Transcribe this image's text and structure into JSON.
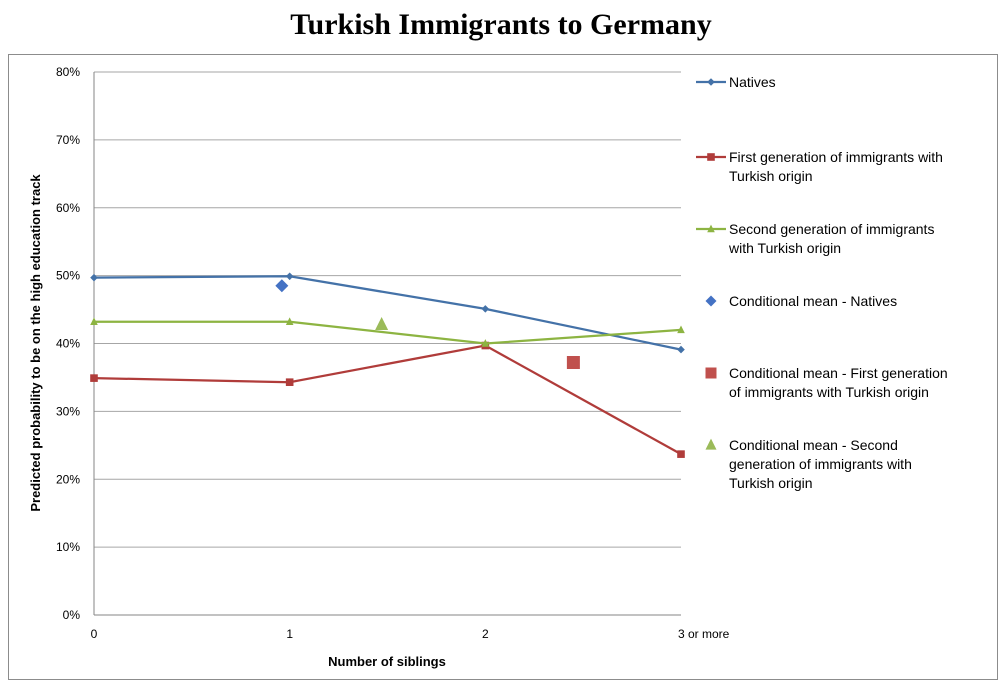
{
  "chart_data": {
    "type": "line",
    "title": "Turkish Immigrants to Germany",
    "xlabel": "Number of siblings",
    "ylabel": "Predicted probability to be on the high education track",
    "categories": [
      "0",
      "1",
      "2",
      "3 or more"
    ],
    "y_ticks": [
      "0%",
      "10%",
      "20%",
      "30%",
      "40%",
      "50%",
      "60%",
      "70%",
      "80%"
    ],
    "ylim": [
      0,
      0.8
    ],
    "grid": true,
    "legend_position": "right",
    "series": [
      {
        "name": "Natives",
        "color": "#4472a8",
        "marker": "diamond",
        "values": [
          0.497,
          0.499,
          0.451,
          0.391
        ]
      },
      {
        "name": "First generation of immigrants with Turkish origin",
        "color": "#b03c3a",
        "marker": "square",
        "values": [
          0.349,
          0.343,
          0.397,
          0.237
        ]
      },
      {
        "name": "Second generation of immigrants with Turkish origin",
        "color": "#8db442",
        "marker": "triangle",
        "values": [
          0.432,
          0.432,
          0.4,
          0.42
        ]
      }
    ],
    "conditional_means": [
      {
        "name": "Conditional mean - Natives",
        "color": "#4472c4",
        "marker": "diamond",
        "x": 0.96,
        "y": 0.485
      },
      {
        "name": "Conditional mean - First generation of immigrants with Turkish origin",
        "color": "#c0504d",
        "marker": "square",
        "x": 2.45,
        "y": 0.372
      },
      {
        "name": "Conditional mean - Second generation of immigrants with Turkish origin",
        "color": "#9bbb59",
        "marker": "triangle",
        "x": 1.47,
        "y": 0.428
      }
    ]
  },
  "legend": {
    "natives": [
      "Natives"
    ],
    "first_gen": [
      "First generation of immigrants with",
      "Turkish origin"
    ],
    "second_gen": [
      "Second generation of immigrants",
      "with Turkish origin"
    ],
    "cm_natives": [
      "Conditional mean - Natives"
    ],
    "cm_first_gen": [
      "Conditional mean - First generation",
      "of immigrants with Turkish origin"
    ],
    "cm_second_gen": [
      "Conditional mean - Second",
      "generation of immigrants with",
      "Turkish origin"
    ]
  }
}
